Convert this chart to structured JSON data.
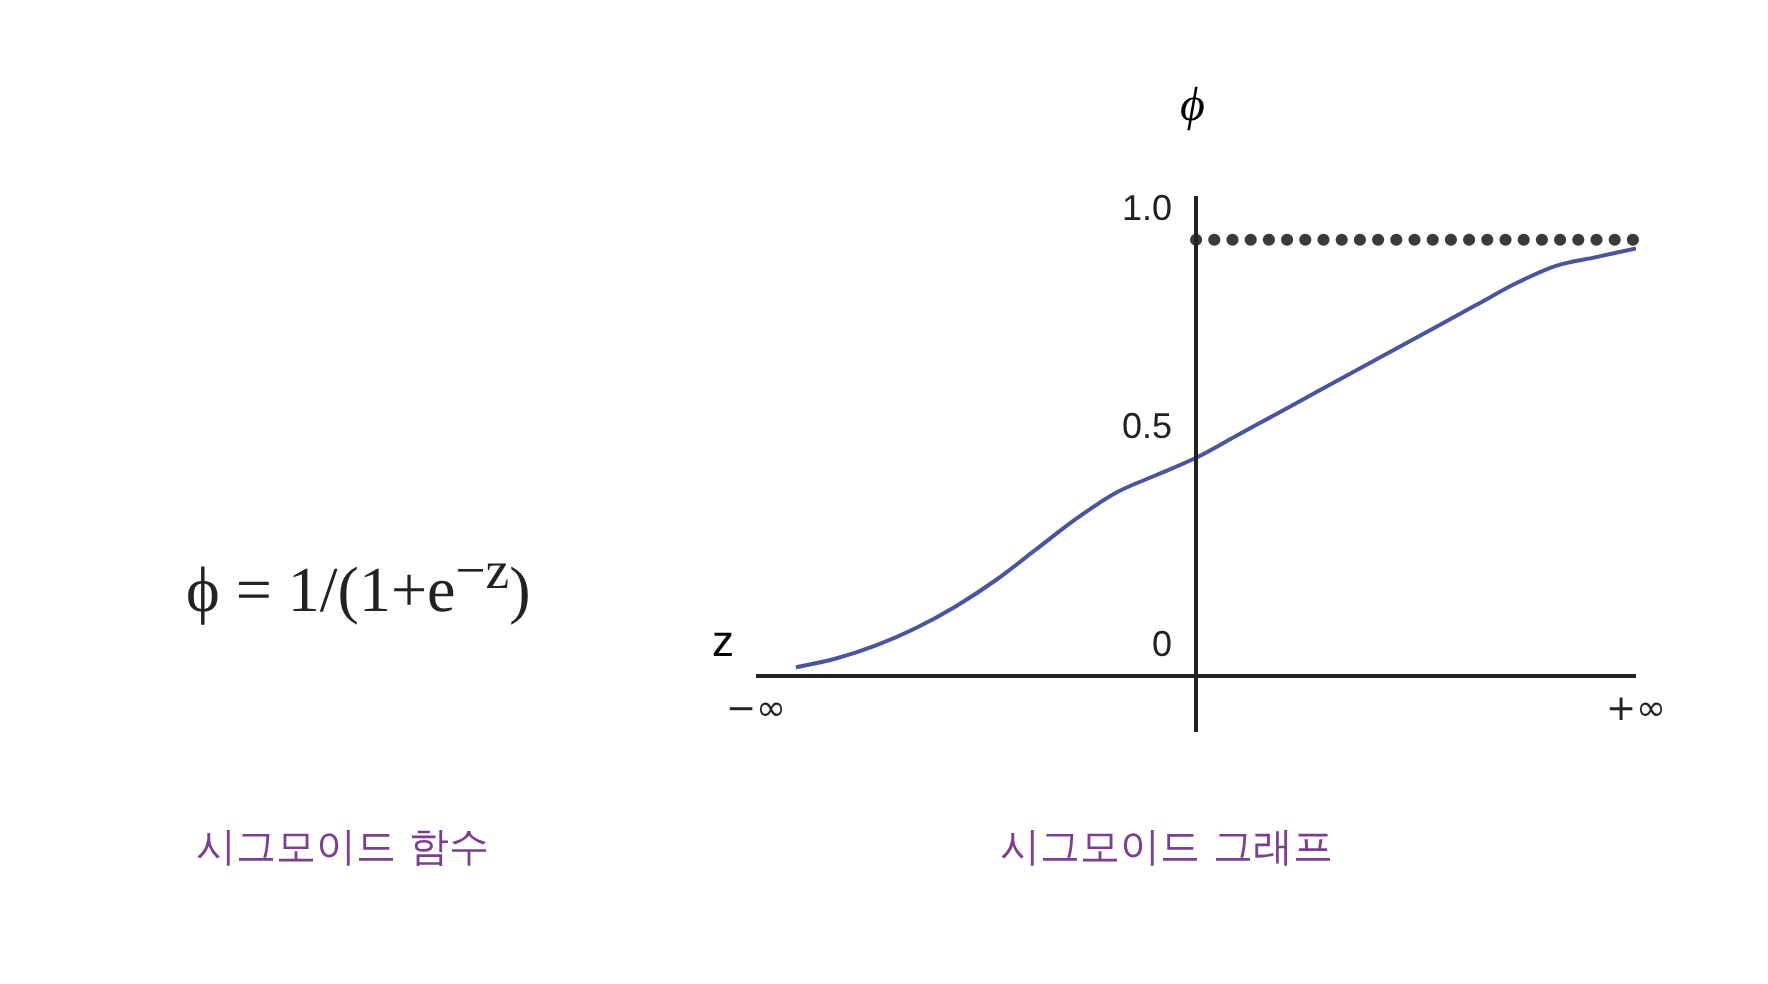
{
  "chart_data": {
    "type": "line",
    "title": "시그모이드 그래프",
    "xlabel": "z",
    "ylabel": "ϕ",
    "annotations": [
      "ϕ = 1/(1+e$^{−z}$)",
      "시그모이드 함수"
    ],
    "categories": [
      "−∞",
      null,
      null,
      null,
      null,
      null,
      null,
      null,
      null,
      null,
      null,
      null,
      null,
      null,
      null,
      null,
      null,
      null,
      null,
      null,
      null,
      null,
      "+∞"
    ],
    "series": [
      {
        "color": "#4a559e",
        "values": [
          null,
          0.02,
          0.04,
          0.07,
          0.11,
          0.16,
          0.22,
          0.29,
          0.36,
          0.42,
          0.46,
          0.5,
          0.55,
          0.6,
          0.65,
          0.7,
          0.75,
          0.8,
          0.85,
          0.9,
          0.94,
          0.96,
          0.98
        ]
      }
    ],
    "ylim": [
      0,
      1.1
    ],
    "yticks": [
      {
        "value": 0,
        "label": "0"
      },
      {
        "value": 0.5,
        "label": "0.5"
      },
      {
        "value": 1,
        "label": "1.0"
      }
    ],
    "ref_lines": [
      {
        "axis": "y",
        "value": 1,
        "color": "#3a3a3a",
        "line_style": "dotted"
      }
    ],
    "grid": false,
    "legend": false,
    "marker": "none",
    "line_style": "solid"
  }
}
